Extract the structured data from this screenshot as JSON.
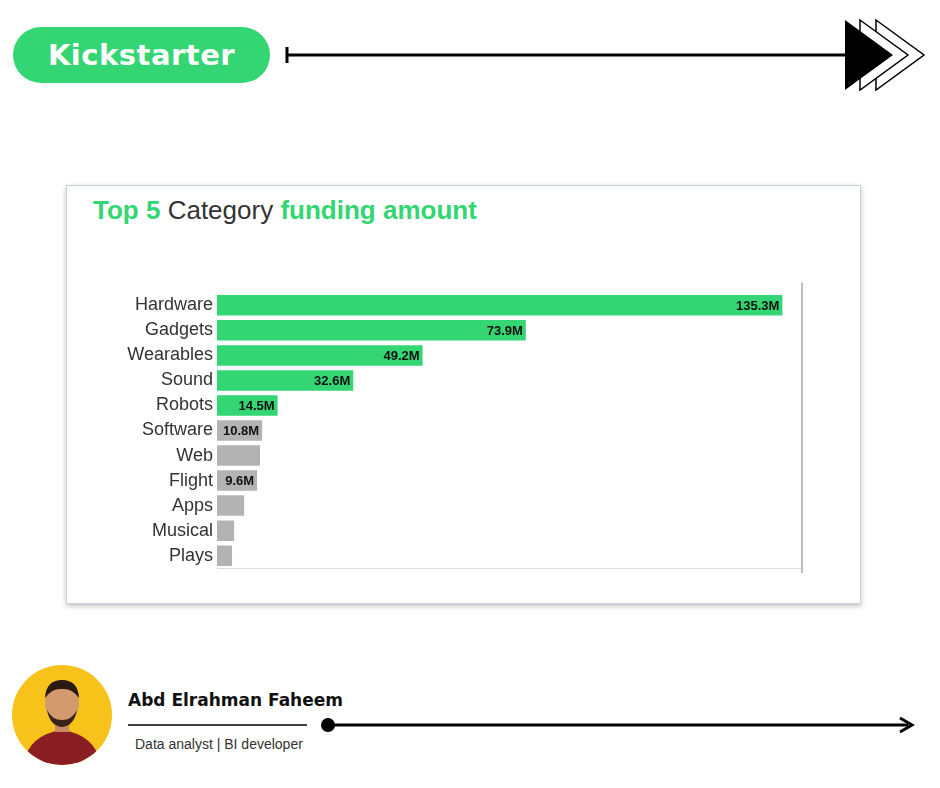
{
  "header": {
    "brand": "Kickstarter"
  },
  "chart_data": {
    "type": "bar",
    "orientation": "horizontal",
    "title": "Top 5 Category funding amount",
    "categories": [
      "Hardware",
      "Gadgets",
      "Wearables",
      "Sound",
      "Robots",
      "Software",
      "Web",
      "Flight",
      "Apps",
      "Musical",
      "Plays"
    ],
    "values": [
      135.3,
      73.9,
      49.2,
      32.6,
      14.5,
      10.8,
      10.3,
      9.6,
      6.5,
      4.1,
      3.6
    ],
    "value_labels": [
      "135.3M",
      "73.9M",
      "49.2M",
      "32.6M",
      "14.5M",
      "10.8M",
      null,
      "9.6M",
      null,
      null,
      null
    ],
    "data_labels": true,
    "colors": [
      "#33d672",
      "#33d672",
      "#33d672",
      "#33d672",
      "#33d672",
      "#b3b3b3",
      "#b3b3b3",
      "#b3b3b3",
      "#b3b3b3",
      "#b3b3b3",
      "#b3b3b3"
    ],
    "xlim": [
      0,
      140
    ],
    "grid": false,
    "tick_labels": "y"
  },
  "author": {
    "name": "Abd Elrahman Faheem",
    "role": "Data analyst | BI developer"
  }
}
